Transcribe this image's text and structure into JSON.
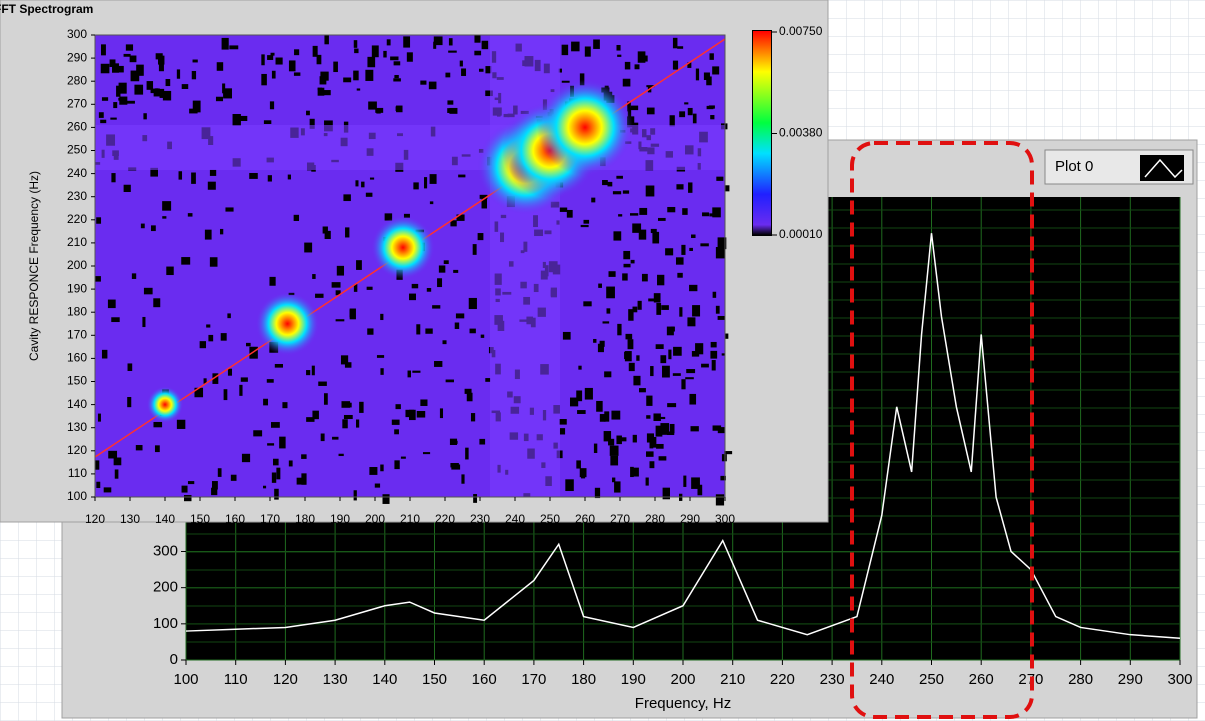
{
  "chart_data": [
    {
      "type": "heatmap",
      "title": "FFT Spectrogram",
      "ylabel": "Cavity RESPONCE Frequency (Hz)",
      "x": [
        140,
        175,
        208,
        243,
        250,
        260
      ],
      "y": [
        140,
        175,
        208,
        243,
        250,
        260
      ],
      "values": [
        0.002,
        0.0045,
        0.0045,
        0.0075,
        0.0075,
        0.0075
      ],
      "xlim": [
        120,
        300
      ],
      "ylim": [
        100,
        300
      ],
      "xticks": [
        120,
        130,
        140,
        150,
        160,
        170,
        180,
        190,
        200,
        210,
        220,
        230,
        240,
        250,
        260,
        270,
        280,
        290,
        300
      ],
      "yticks": [
        100,
        110,
        120,
        130,
        140,
        150,
        160,
        170,
        180,
        190,
        200,
        210,
        220,
        230,
        240,
        250,
        260,
        270,
        280,
        290,
        300
      ],
      "clim": [
        0.0001,
        0.0075
      ],
      "cticks": [
        {
          "value": 0.0075,
          "label": "0.00750"
        },
        {
          "value": 0.0038,
          "label": "0.00380"
        },
        {
          "value": 0.0001,
          "label": "0.00010"
        }
      ]
    },
    {
      "type": "line",
      "xlabel": "Frequency, Hz",
      "x": [
        100,
        110,
        120,
        130,
        140,
        145,
        150,
        160,
        170,
        175,
        180,
        190,
        200,
        208,
        215,
        225,
        235,
        240,
        243,
        246,
        248,
        250,
        252,
        255,
        258,
        260,
        263,
        266,
        270,
        275,
        280,
        290,
        300
      ],
      "series": [
        {
          "name": "Plot 0",
          "color": "#ffffff",
          "values": [
            80,
            85,
            90,
            110,
            150,
            160,
            130,
            110,
            220,
            320,
            120,
            90,
            150,
            330,
            110,
            70,
            120,
            400,
            700,
            520,
            900,
            1180,
            950,
            700,
            520,
            900,
            450,
            300,
            250,
            120,
            90,
            70,
            60
          ]
        }
      ],
      "xlim": [
        100,
        300
      ],
      "ylim": [
        0,
        1280
      ],
      "xticks": [
        100,
        110,
        120,
        130,
        140,
        150,
        160,
        170,
        180,
        190,
        200,
        210,
        220,
        230,
        240,
        250,
        260,
        270,
        280,
        290,
        300
      ],
      "yticks": [
        0,
        100,
        200,
        300
      ],
      "grid": true
    }
  ]
}
